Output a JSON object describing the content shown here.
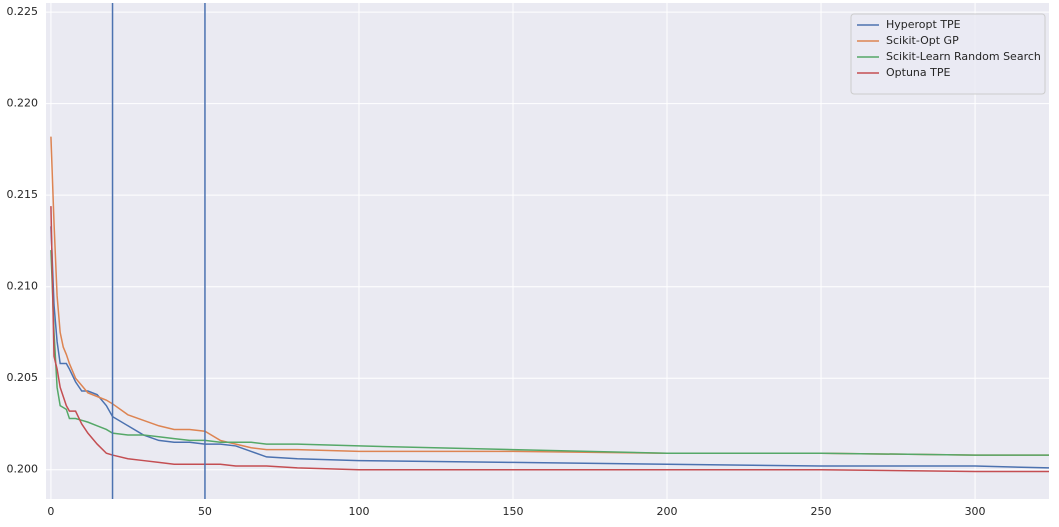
{
  "chart_data": {
    "type": "line",
    "x": [
      0,
      1,
      2,
      3,
      4,
      5,
      6,
      8,
      10,
      12,
      15,
      18,
      20,
      25,
      30,
      35,
      40,
      45,
      50,
      55,
      60,
      65,
      70,
      80,
      100,
      150,
      200,
      250,
      300,
      324
    ],
    "series": [
      {
        "name": "Hyperopt TPE",
        "color": "#4c72b0",
        "values": [
          0.2133,
          0.209,
          0.207,
          0.2058,
          0.2058,
          0.2058,
          0.2055,
          0.2048,
          0.2043,
          0.2043,
          0.2041,
          0.2035,
          0.2029,
          0.2024,
          0.2019,
          0.2016,
          0.2015,
          0.2015,
          0.2014,
          0.2014,
          0.2013,
          0.201,
          0.2007,
          0.2006,
          0.2005,
          0.2004,
          0.2003,
          0.2002,
          0.2002,
          0.2001
        ]
      },
      {
        "name": "Scikit-Opt GP",
        "color": "#dd8452",
        "values": [
          0.2182,
          0.2135,
          0.2095,
          0.2075,
          0.2067,
          0.2063,
          0.2058,
          0.205,
          0.2046,
          0.2042,
          0.204,
          0.2038,
          0.2036,
          0.203,
          0.2027,
          0.2024,
          0.2022,
          0.2022,
          0.2021,
          0.2016,
          0.2014,
          0.2012,
          0.2011,
          0.2011,
          0.201,
          0.201,
          0.2009,
          0.2009,
          0.2008,
          0.2008
        ]
      },
      {
        "name": "Scikit-Learn Random Search",
        "color": "#55a868",
        "values": [
          0.212,
          0.2075,
          0.2045,
          0.2035,
          0.2034,
          0.2033,
          0.2028,
          0.2028,
          0.2027,
          0.2026,
          0.2024,
          0.2022,
          0.202,
          0.2019,
          0.2019,
          0.2018,
          0.2017,
          0.2016,
          0.2016,
          0.2015,
          0.2015,
          0.2015,
          0.2014,
          0.2014,
          0.2013,
          0.2011,
          0.2009,
          0.2009,
          0.2008,
          0.2008
        ]
      },
      {
        "name": "Optuna TPE",
        "color": "#c44e52",
        "values": [
          0.2144,
          0.2062,
          0.2055,
          0.2045,
          0.204,
          0.2035,
          0.2032,
          0.2032,
          0.2025,
          0.202,
          0.2014,
          0.2009,
          0.2008,
          0.2006,
          0.2005,
          0.2004,
          0.2003,
          0.2003,
          0.2003,
          0.2003,
          0.2002,
          0.2002,
          0.2002,
          0.2001,
          0.2,
          0.2,
          0.2,
          0.2,
          0.1999,
          0.1999
        ]
      }
    ],
    "vlines": [
      20,
      50
    ],
    "vline_color": "#4c72b0",
    "xlim": [
      -1.6,
      324
    ],
    "xticks": [
      0,
      50,
      100,
      150,
      200,
      250,
      300
    ],
    "ylim": [
      0.1984,
      0.2255
    ],
    "yticks": [
      {
        "value": 0.2,
        "label": "0.200"
      },
      0.205,
      {
        "value": 0.21,
        "label": "0.210"
      },
      0.215,
      {
        "value": 0.22,
        "label": "0.220"
      },
      0.225
    ],
    "grid": true,
    "legend": "upper right"
  }
}
